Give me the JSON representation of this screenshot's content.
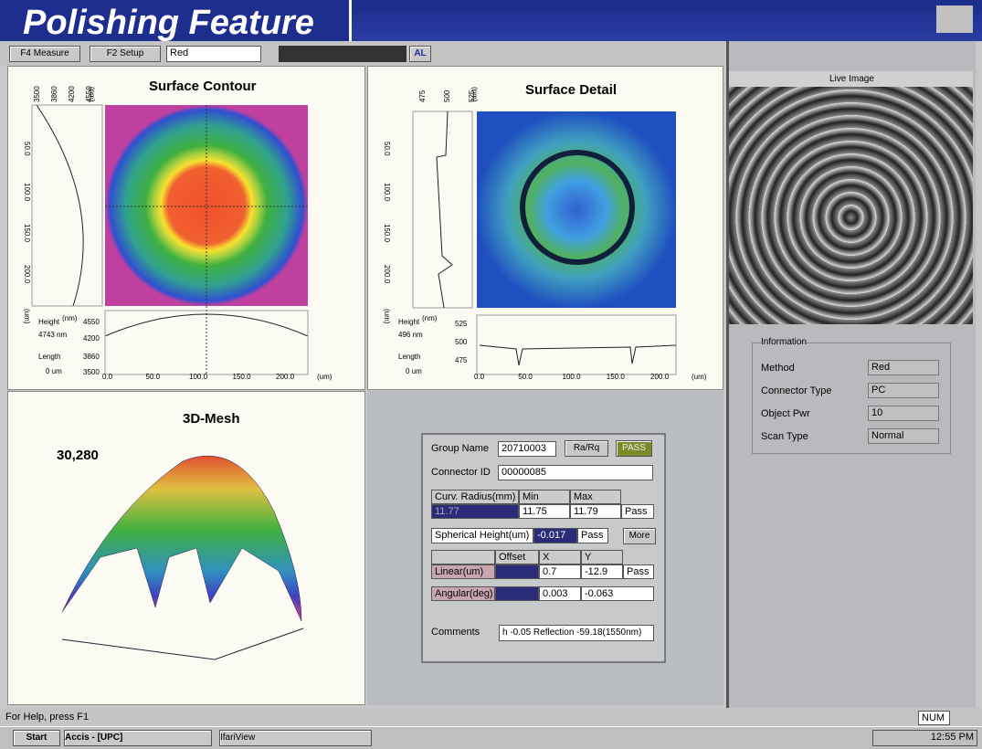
{
  "banner": "Polishing Feature",
  "toolbar": {
    "measure": "F4 Measure",
    "setup": "F2 Setup",
    "select": "Red",
    "al": "AL"
  },
  "surface_contour": {
    "title": "Surface Contour",
    "left_ticks": [
      "50.0",
      "100.0",
      "150.0",
      "200.0"
    ],
    "top_ticks": [
      "3500",
      "3860",
      "4200",
      "4550"
    ],
    "top_unit": "(nm)",
    "left_unit": "(um)",
    "height_label": "Height",
    "height_unit": "(nm)",
    "height_value": "4743 nm",
    "length_label": "Length",
    "length_value": "0 um",
    "profile_ticks": [
      "4550",
      "4200",
      "3860",
      "3500"
    ],
    "x_ticks": [
      "0.0",
      "50.0",
      "100.0",
      "150.0",
      "200.0"
    ],
    "x_unit": "(um)"
  },
  "surface_detail": {
    "title": "Surface Detail",
    "left_ticks": [
      "50.0",
      "100.0",
      "150.0",
      "200.0"
    ],
    "top_ticks": [
      "475",
      "500",
      "525"
    ],
    "top_unit": "(nm)",
    "left_unit": "(um)",
    "height_label": "Height",
    "height_unit": "(nm)",
    "height_value": "496 nm",
    "length_label": "Length",
    "length_value": "0 um",
    "profile_ticks": [
      "525",
      "500",
      "475"
    ],
    "x_ticks": [
      "0.0",
      "50.0",
      "100.0",
      "150.0",
      "200.0"
    ],
    "x_unit": "(um)"
  },
  "mesh": {
    "title": "3D-Mesh",
    "value": "30,280"
  },
  "results": {
    "group_name_label": "Group Name",
    "group_name": "20710003",
    "ra_rq": "Ra/Rq",
    "status": "PASS",
    "connector_id_label": "Connector ID",
    "connector_id": "00000085",
    "curv_label": "Curv. Radius(mm)",
    "min_label": "Min",
    "max_label": "Max",
    "curv_value": "11.77",
    "curv_min": "11.75",
    "curv_max": "11.79",
    "curv_result": "Pass",
    "sph_label": "Spherical Height(um)",
    "sph_value": "-0.017",
    "sph_result": "Pass",
    "more": "More",
    "offset_label": "Offset",
    "x_label": "X",
    "y_label": "Y",
    "linear_label": "Linear(um)",
    "linear_x": "0.7",
    "linear_y": "-12.9",
    "linear_result": "Pass",
    "angular_label": "Angular(deg)",
    "angular_x": "0.003",
    "angular_y": "-0.063",
    "comments_label": "Comments",
    "comments": "h -0.05 Reflection -59.18(1550nm)"
  },
  "live": {
    "title": "Live Image"
  },
  "information": {
    "title": "Information",
    "rows": [
      [
        "Method",
        "Red"
      ],
      [
        "Connector Type",
        "PC"
      ],
      [
        "Object Pwr",
        "10"
      ],
      [
        "Scan Type",
        "Normal"
      ]
    ]
  },
  "status_bar": {
    "help": "For Help, press F1",
    "num": "NUM"
  },
  "taskbar": {
    "start": "Start",
    "app1": "Accis - [UPC]",
    "app2": "IfariView",
    "clock": "12:55 PM"
  }
}
